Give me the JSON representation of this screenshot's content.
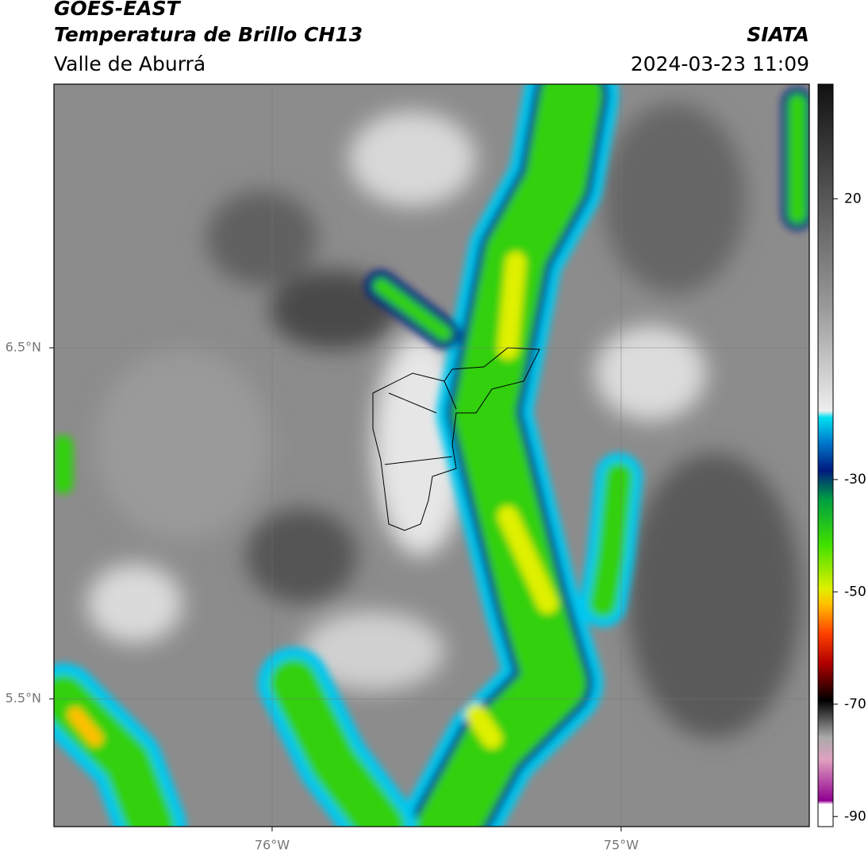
{
  "chart_data": {
    "type": "map",
    "title": "GOES-EAST",
    "subtitle": "Temperatura de Brillo CH13",
    "source": "SIATA",
    "region": "Valle de Aburrá",
    "timestamp": "2024-03-23 11:09",
    "xlim": [
      -76.625,
      -74.461
    ],
    "ylim": [
      5.136,
      7.251
    ],
    "xticks": [
      {
        "value": -76,
        "label": "76°W"
      },
      {
        "value": -75,
        "label": "75°W"
      }
    ],
    "yticks": [
      {
        "value": 5.5,
        "label": "5.5°N"
      },
      {
        "value": 6.5,
        "label": "6.5°N"
      }
    ],
    "grid": true,
    "colorbar": {
      "lim": [
        -91.8,
        40.4
      ],
      "ticks": [
        20,
        -30,
        -50,
        -70,
        -90
      ]
    }
  }
}
